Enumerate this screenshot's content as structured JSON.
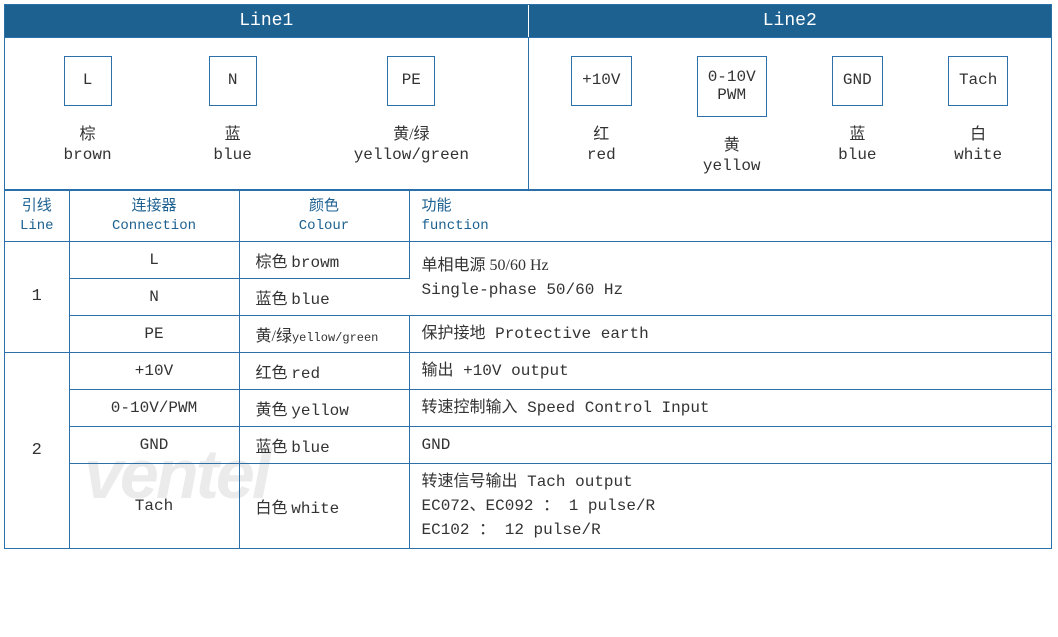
{
  "colors": {
    "border": "#2b70a8",
    "header_bg": "#1d6191",
    "header_fg": "#ffffff",
    "th_fg": "#1d6191",
    "text": "#333333",
    "watermark": "#c8c8c8"
  },
  "headers": {
    "line1": "Line1",
    "line2": "Line2"
  },
  "diagram": {
    "line1": [
      {
        "box": "L",
        "cn": "棕",
        "en": "brown"
      },
      {
        "box": "N",
        "cn": "蓝",
        "en": "blue"
      },
      {
        "box": "PE",
        "cn": "黄/绿",
        "en": "yellow/green"
      }
    ],
    "line2": [
      {
        "box": "+10V",
        "cn": "红",
        "en": "red"
      },
      {
        "box": "0-10V\nPWM",
        "cn": "黄",
        "en": "yellow"
      },
      {
        "box": "GND",
        "cn": "蓝",
        "en": "blue"
      },
      {
        "box": "Tach",
        "cn": "白",
        "en": "white"
      }
    ]
  },
  "table_header": {
    "line_cn": "引线",
    "line_en": "Line",
    "conn_cn": "连接器",
    "conn_en": "Connection",
    "colour_cn": "颜色",
    "colour_en": "Colour",
    "func_cn": "功能",
    "func_en": "function"
  },
  "rows": {
    "g1_id": "1",
    "g1_r1_conn": "L",
    "g1_r1_colour_cn": "棕色",
    "g1_r1_colour_en": "browm",
    "g1_r12_func_cn": "单相电源 50/60 Hz",
    "g1_r12_func_en": "Single-phase 50/60 Hz",
    "g1_r2_conn": "N",
    "g1_r2_colour_cn": "蓝色",
    "g1_r2_colour_en": "blue",
    "g1_r3_conn": "PE",
    "g1_r3_colour_cn": "黄/绿",
    "g1_r3_colour_en": "yellow/green",
    "g1_r3_func": "保护接地 Protective earth",
    "g2_id": "2",
    "g2_r1_conn": "+10V",
    "g2_r1_colour_cn": "红色",
    "g2_r1_colour_en": "red",
    "g2_r1_func": "输出 +10V output",
    "g2_r2_conn": "0-10V/PWM",
    "g2_r2_colour_cn": "黄色",
    "g2_r2_colour_en": "yellow",
    "g2_r2_func": "转速控制输入 Speed Control Input",
    "g2_r3_conn": "GND",
    "g2_r3_colour_cn": "蓝色",
    "g2_r3_colour_en": "blue",
    "g2_r3_func": "GND",
    "g2_r4_conn": "Tach",
    "g2_r4_colour_cn": "白色",
    "g2_r4_colour_en": "white",
    "g2_r4_func_l1": "转速信号输出 Tach output",
    "g2_r4_func_l2": "EC072、EC092 ： 1 pulse/R",
    "g2_r4_func_l3": "EC102 ： 12 pulse/R"
  },
  "watermark": "ventel"
}
